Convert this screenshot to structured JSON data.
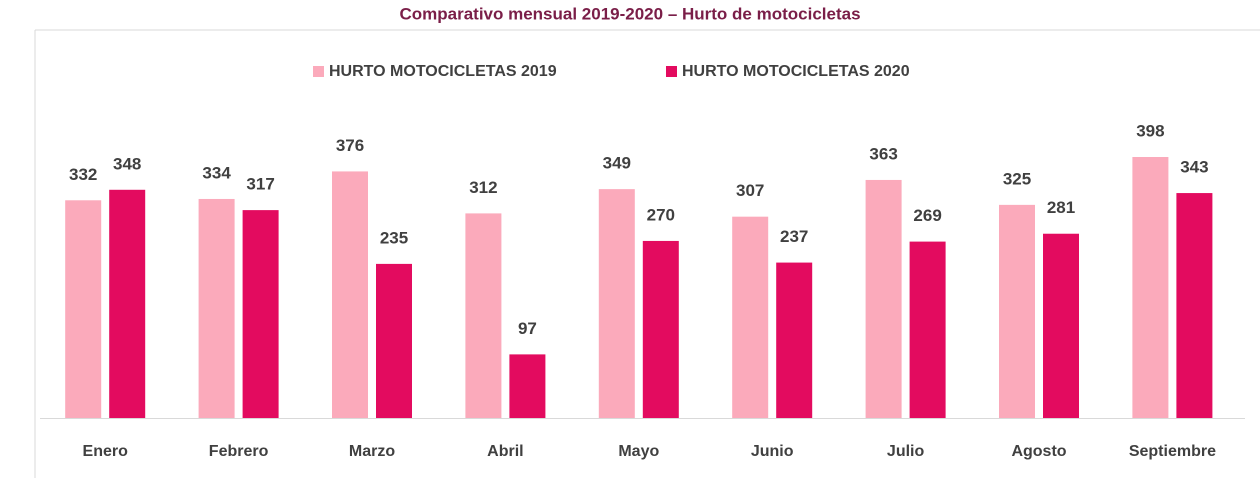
{
  "chart_data": {
    "type": "bar",
    "title": "Comparativo mensual 2019-2020 – Hurto de motocicletas",
    "categories": [
      "Enero",
      "Febrero",
      "Marzo",
      "Abril",
      "Mayo",
      "Junio",
      "Julio",
      "Agosto",
      "Septiembre"
    ],
    "series": [
      {
        "name": "HURTO MOTOCICLETAS 2019",
        "color": "#fbaabb",
        "values": [
          332,
          334,
          376,
          312,
          349,
          307,
          363,
          325,
          398
        ]
      },
      {
        "name": "HURTO MOTOCICLETAS 2020",
        "color": "#e30b5f",
        "values": [
          348,
          317,
          235,
          97,
          270,
          237,
          269,
          281,
          343
        ]
      }
    ],
    "legend": "top"
  }
}
